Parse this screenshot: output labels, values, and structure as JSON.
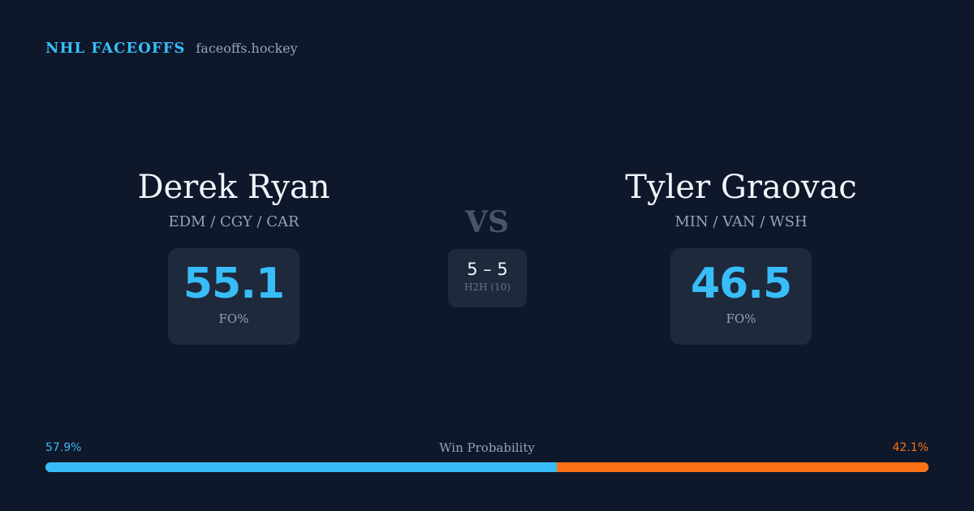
{
  "brand": {
    "name": "NHL FACEOFFS",
    "domain": "faceoffs.hockey"
  },
  "player_left": {
    "name": "Derek Ryan",
    "teams": "EDM / CGY / CAR",
    "fo_pct": "55.1",
    "fo_label": "FO%"
  },
  "player_right": {
    "name": "Tyler Graovac",
    "teams": "MIN / VAN / WSH",
    "fo_pct": "46.5",
    "fo_label": "FO%"
  },
  "matchup": {
    "vs_label": "VS",
    "h2h_score": "5 – 5",
    "h2h_label": "H2H (10)"
  },
  "win_probability": {
    "title": "Win Probability",
    "left_label": "57.9%",
    "right_label": "42.1%",
    "left_value": 57.9,
    "right_value": 42.1
  },
  "colors": {
    "background": "#0f172a",
    "card": "#1e293b",
    "accent_left": "#38bdf8",
    "accent_right": "#f97316"
  }
}
